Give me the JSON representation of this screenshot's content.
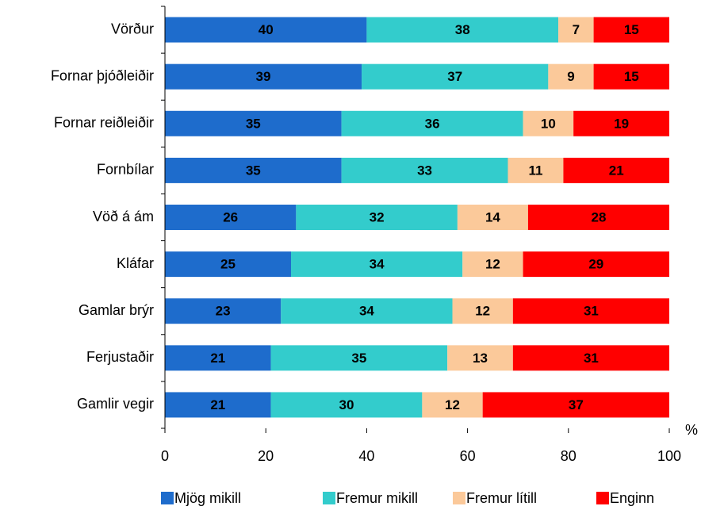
{
  "chart_data": {
    "type": "stacked_barh",
    "categories": [
      "Vörður",
      "Fornar þjóðleiðir",
      "Fornar reiðleiðir",
      "Fornbílar",
      "Vöð á ám",
      "Kláfar",
      "Gamlar brýr",
      "Ferjustaðir",
      "Gamlir vegir"
    ],
    "series": [
      {
        "name": "Mjög mikill",
        "color": "#1e6ccc",
        "values": [
          40,
          39,
          35,
          35,
          26,
          25,
          23,
          21,
          21
        ]
      },
      {
        "name": "Fremur mikill",
        "color": "#33cccc",
        "values": [
          38,
          37,
          36,
          33,
          32,
          34,
          34,
          35,
          30
        ]
      },
      {
        "name": "Fremur lítill",
        "color": "#fbc99a",
        "values": [
          7,
          9,
          10,
          11,
          14,
          12,
          12,
          13,
          12
        ]
      },
      {
        "name": "Enginn",
        "color": "#ff0000",
        "values": [
          15,
          15,
          19,
          21,
          28,
          29,
          31,
          31,
          37
        ]
      }
    ],
    "x_label": "%",
    "xlim": [
      0,
      100
    ],
    "xticks": [
      0,
      20,
      40,
      60,
      80,
      100
    ],
    "legend": "bottom"
  }
}
